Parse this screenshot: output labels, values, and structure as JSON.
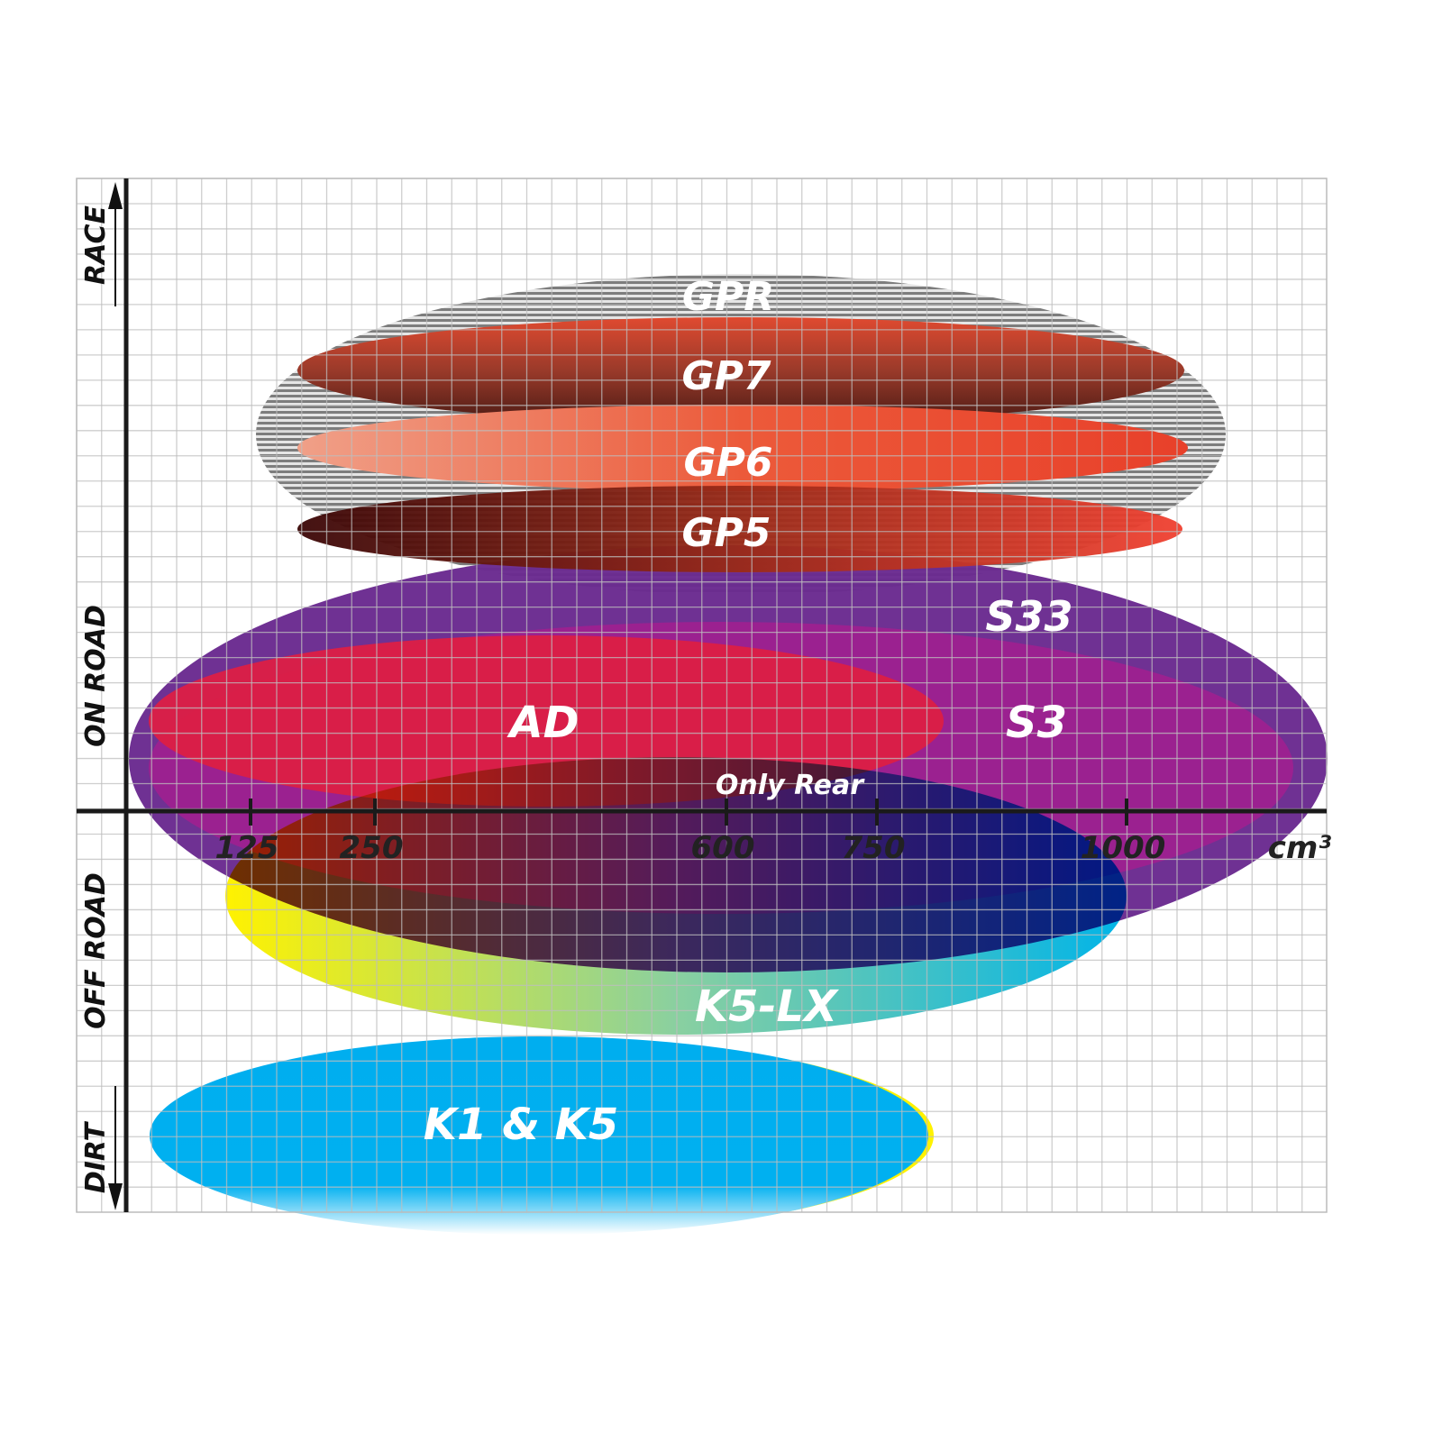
{
  "chart_data": {
    "type": "positioning-chart",
    "xlabel": "cm³",
    "x_ticks": [
      125,
      250,
      600,
      750,
      1000
    ],
    "x_tick_labels": [
      "125",
      "250",
      "600",
      "750",
      "1000"
    ],
    "y_categories": [
      "RACE",
      "ON ROAD",
      "OFF ROAD",
      "DIRT"
    ],
    "grid": true,
    "products": [
      {
        "name": "GPR",
        "color": "#9a9a9a"
      },
      {
        "name": "GP7",
        "color": "#7a2a1e"
      },
      {
        "name": "GP6",
        "color": "#e8402a"
      },
      {
        "name": "GP5",
        "color": "#5a0a0a"
      },
      {
        "name": "S33",
        "color": "#6a2a90"
      },
      {
        "name": "S3",
        "color": "#9b1f8a"
      },
      {
        "name": "AD",
        "color": "#dc1f44"
      },
      {
        "name": "K5-LX",
        "color": "#2ec4d8",
        "note": "Only Rear"
      },
      {
        "name": "K1 & K5",
        "color": "#00aeef"
      }
    ]
  }
}
